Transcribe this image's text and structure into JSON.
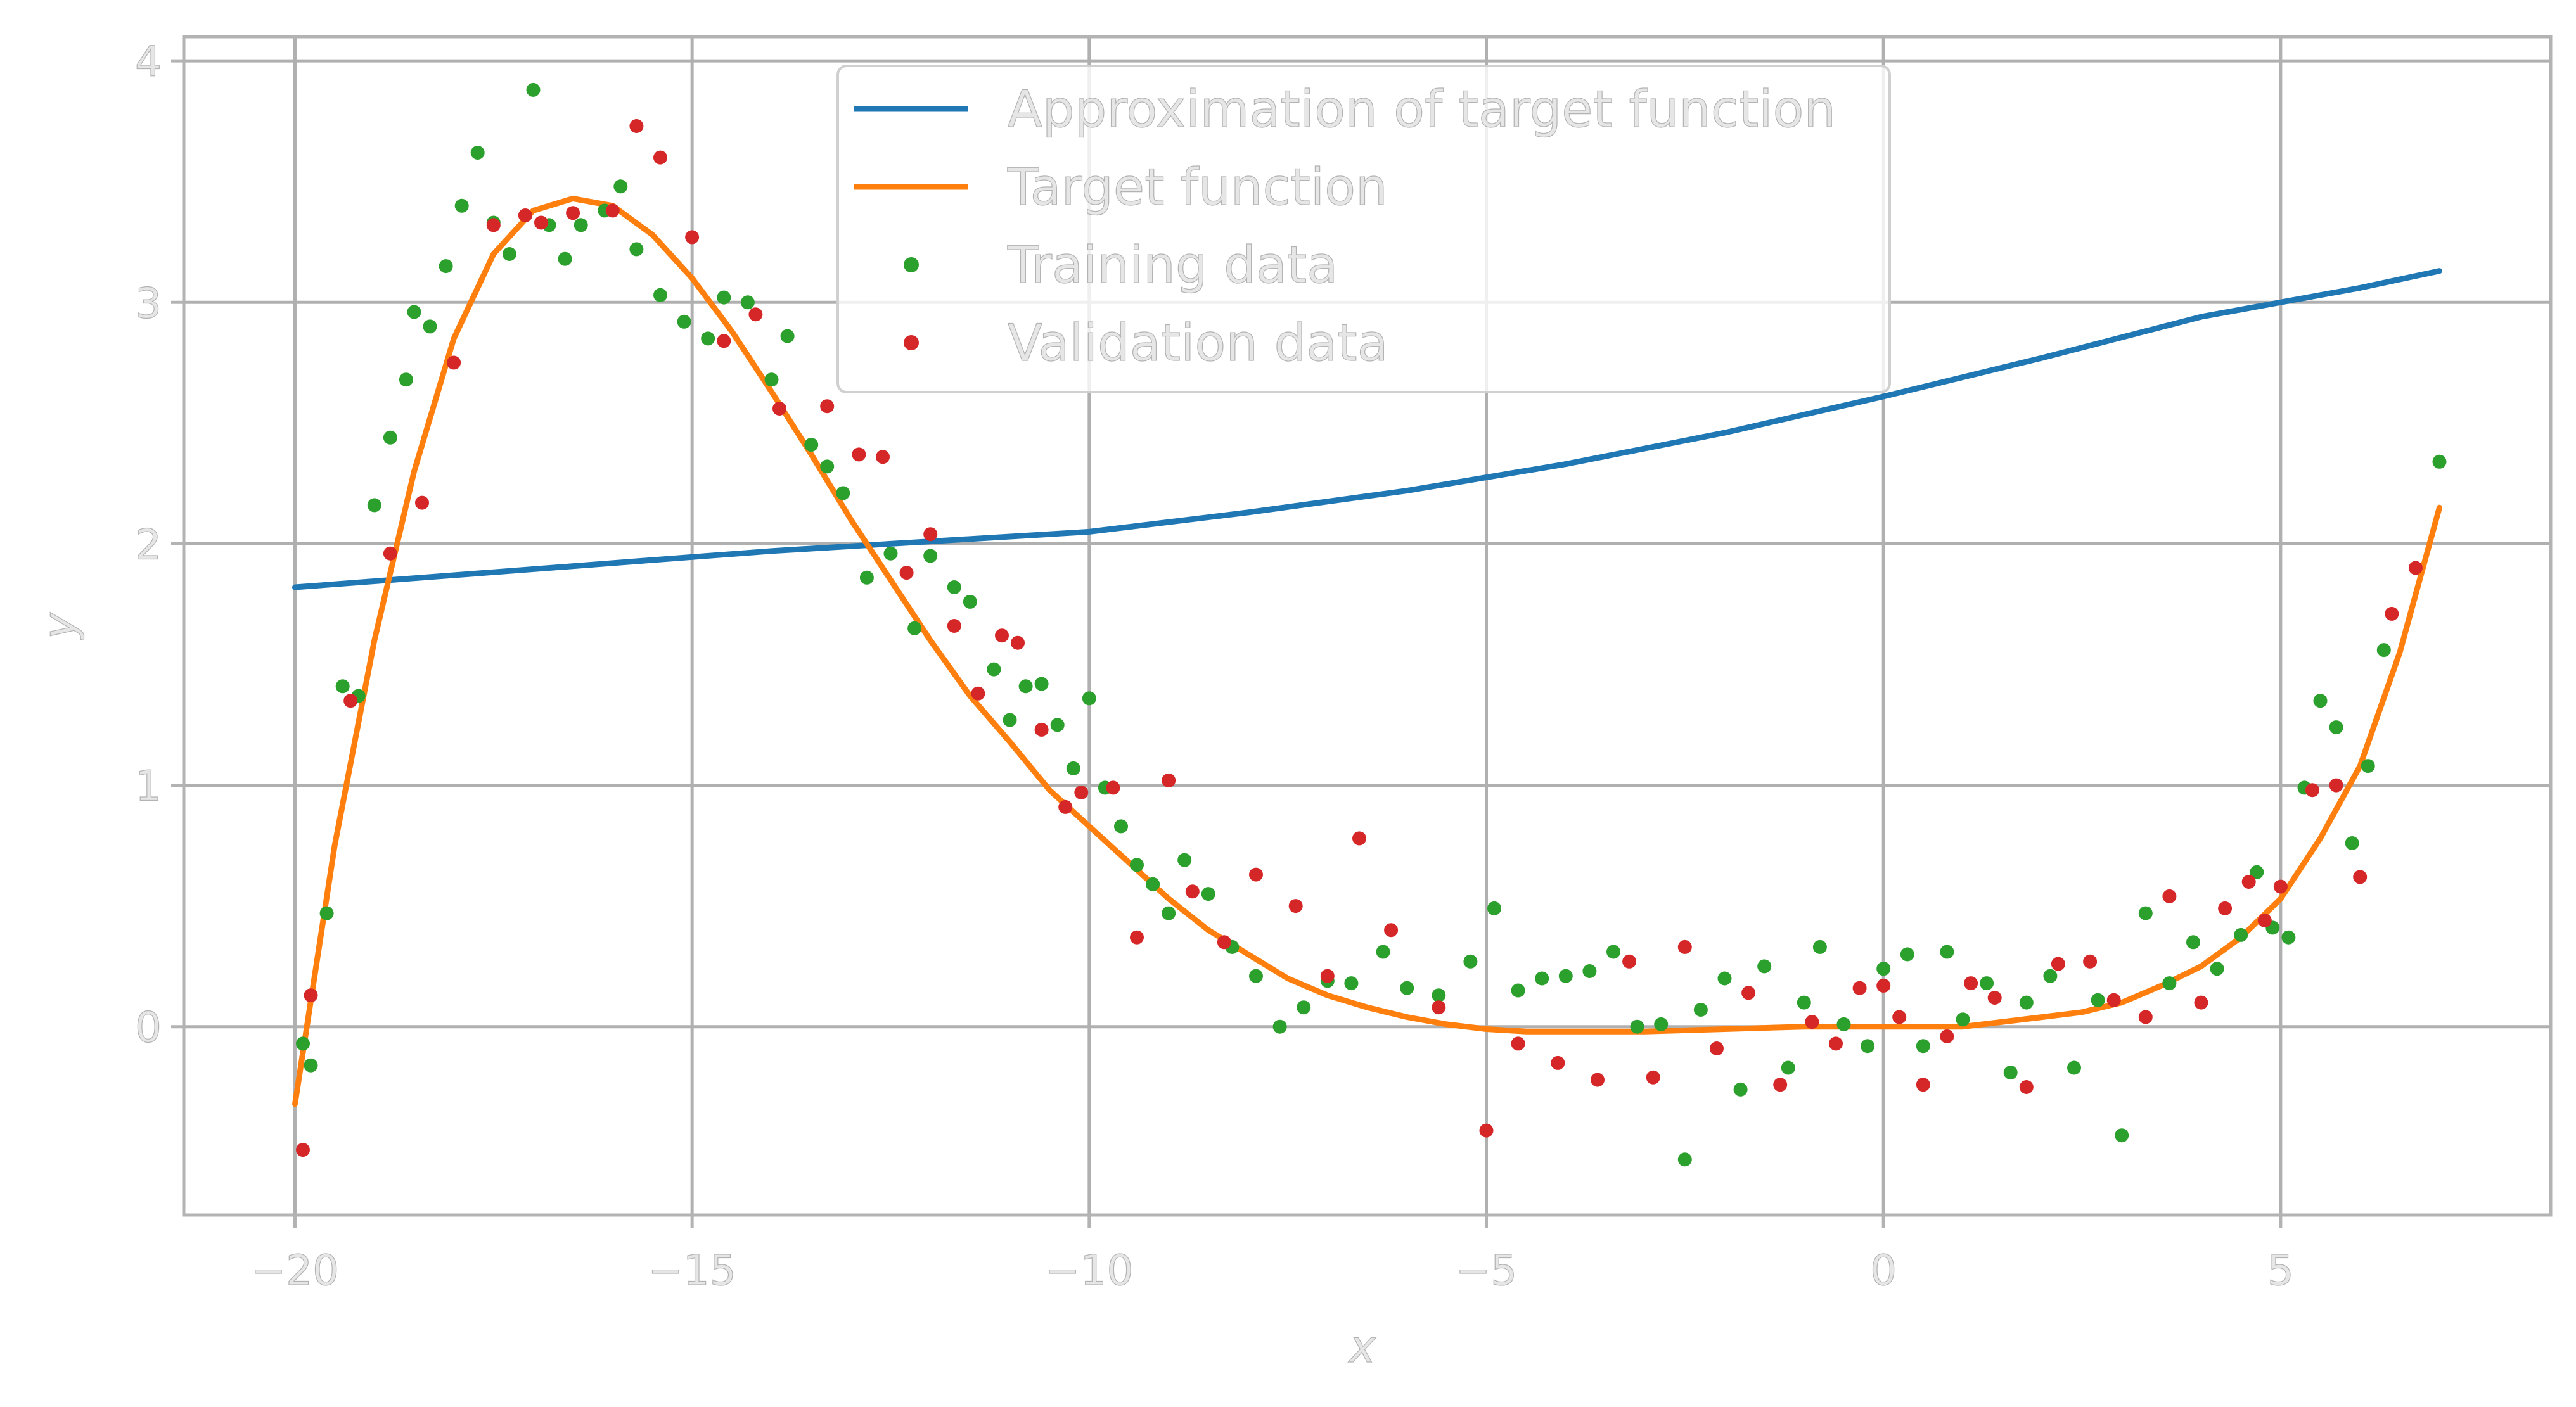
{
  "chart_data": {
    "type": "line",
    "xlabel": "x",
    "ylabel": "y",
    "xlim": [
      -21.4,
      8.4
    ],
    "ylim": [
      -0.78,
      4.1
    ],
    "xticks": [
      -20,
      -15,
      -10,
      -5,
      0,
      5
    ],
    "xtick_labels": [
      "−20",
      "−15",
      "−10",
      "−5",
      "0",
      "5"
    ],
    "yticks": [
      0,
      1,
      2,
      3,
      4
    ],
    "ytick_labels": [
      "0",
      "1",
      "2",
      "3",
      "4"
    ],
    "grid": true,
    "legend_position": "top-center",
    "colors": {
      "approximation": "#1f77b4",
      "target": "#ff7f0e",
      "training": "#2ca02c",
      "validation": "#d62728"
    },
    "series": [
      {
        "name": "Approximation of target function",
        "kind": "line",
        "x": [
          -20,
          -18,
          -16,
          -14,
          -12,
          -10,
          -8,
          -6,
          -4,
          -2,
          0,
          2,
          4,
          6,
          7
        ],
        "y": [
          1.82,
          1.87,
          1.92,
          1.97,
          2.01,
          2.05,
          2.13,
          2.22,
          2.33,
          2.46,
          2.61,
          2.77,
          2.94,
          3.06,
          3.13
        ]
      },
      {
        "name": "Target function",
        "kind": "line",
        "x": [
          -20,
          -19.5,
          -19,
          -18.5,
          -18,
          -17.5,
          -17,
          -16.5,
          -16,
          -15.5,
          -15,
          -14.5,
          -14,
          -13.5,
          -13,
          -12.5,
          -12,
          -11.5,
          -11,
          -10.5,
          -10,
          -9.5,
          -9,
          -8.5,
          -8,
          -7.5,
          -7,
          -6.5,
          -6,
          -5.5,
          -5,
          -4.5,
          -4,
          -3.5,
          -3,
          -2,
          -1,
          0,
          1,
          2,
          2.5,
          3,
          3.5,
          4,
          4.5,
          5,
          5.5,
          6,
          6.5,
          7
        ],
        "y": [
          -0.32,
          0.75,
          1.6,
          2.3,
          2.85,
          3.2,
          3.38,
          3.43,
          3.4,
          3.28,
          3.1,
          2.88,
          2.63,
          2.37,
          2.1,
          1.85,
          1.6,
          1.37,
          1.18,
          0.98,
          0.83,
          0.68,
          0.53,
          0.4,
          0.3,
          0.2,
          0.13,
          0.08,
          0.04,
          0.01,
          -0.01,
          -0.02,
          -0.02,
          -0.02,
          -0.02,
          -0.01,
          0.0,
          0.0,
          0.0,
          0.04,
          0.06,
          0.1,
          0.17,
          0.25,
          0.37,
          0.53,
          0.78,
          1.08,
          1.55,
          2.15
        ]
      },
      {
        "name": "Training data",
        "kind": "scatter",
        "x": [
          -19.9,
          -19.8,
          -19.6,
          -19.4,
          -19.2,
          -19.0,
          -18.8,
          -18.6,
          -18.5,
          -18.3,
          -18.1,
          -17.9,
          -17.7,
          -17.5,
          -17.3,
          -17.0,
          -16.8,
          -16.6,
          -16.4,
          -16.1,
          -15.9,
          -15.7,
          -15.4,
          -15.1,
          -14.8,
          -14.6,
          -14.3,
          -14.0,
          -13.8,
          -13.5,
          -13.3,
          -13.1,
          -12.8,
          -12.5,
          -12.2,
          -12.0,
          -11.7,
          -11.5,
          -11.2,
          -11.0,
          -10.8,
          -10.6,
          -10.4,
          -10.2,
          -10.0,
          -9.8,
          -9.6,
          -9.4,
          -9.2,
          -9.0,
          -8.8,
          -8.5,
          -8.2,
          -7.9,
          -7.6,
          -7.3,
          -7.0,
          -6.7,
          -6.3,
          -6.0,
          -5.6,
          -5.2,
          -4.9,
          -4.6,
          -4.3,
          -4.0,
          -3.7,
          -3.4,
          -3.1,
          -2.8,
          -2.5,
          -2.3,
          -2.0,
          -1.8,
          -1.5,
          -1.2,
          -1.0,
          -0.8,
          -0.5,
          -0.2,
          0.0,
          0.3,
          0.5,
          0.8,
          1.0,
          1.3,
          1.6,
          1.8,
          2.1,
          2.4,
          2.7,
          3.0,
          3.3,
          3.6,
          3.9,
          4.2,
          4.5,
          4.7,
          4.9,
          5.1,
          5.3,
          5.5,
          5.7,
          5.9,
          6.1,
          6.3,
          7.0
        ],
        "y": [
          -0.07,
          -0.16,
          0.47,
          1.41,
          1.37,
          2.16,
          2.44,
          2.68,
          2.96,
          2.9,
          3.15,
          3.4,
          3.62,
          3.33,
          3.2,
          3.88,
          3.32,
          3.18,
          3.32,
          3.38,
          3.48,
          3.22,
          3.03,
          2.92,
          2.85,
          3.02,
          3.0,
          2.68,
          2.86,
          2.41,
          2.32,
          2.21,
          1.86,
          1.96,
          1.65,
          1.95,
          1.82,
          1.76,
          1.48,
          1.27,
          1.41,
          1.42,
          1.25,
          1.07,
          1.36,
          0.99,
          0.83,
          0.67,
          0.59,
          0.47,
          0.69,
          0.55,
          0.33,
          0.21,
          0.0,
          0.08,
          0.19,
          0.18,
          0.31,
          0.16,
          0.13,
          0.27,
          0.49,
          0.15,
          0.2,
          0.21,
          0.23,
          0.31,
          0.0,
          0.01,
          -0.55,
          0.07,
          0.2,
          -0.26,
          0.25,
          -0.17,
          0.1,
          0.33,
          0.01,
          -0.08,
          0.24,
          0.3,
          -0.08,
          0.31,
          0.03,
          0.18,
          -0.19,
          0.1,
          0.21,
          -0.17,
          0.11,
          -0.45,
          0.47,
          0.18,
          0.35,
          0.24,
          0.38,
          0.64,
          0.41,
          0.37,
          0.99,
          1.35,
          1.24,
          0.76,
          1.08,
          1.56,
          2.34
        ]
      },
      {
        "name": "Validation data",
        "kind": "scatter",
        "x": [
          -19.9,
          -19.8,
          -19.3,
          -18.8,
          -18.4,
          -18.0,
          -17.5,
          -17.1,
          -16.9,
          -16.5,
          -16.0,
          -15.7,
          -15.4,
          -15.0,
          -14.6,
          -14.2,
          -13.9,
          -13.3,
          -12.9,
          -12.6,
          -12.3,
          -12.0,
          -11.7,
          -11.4,
          -11.1,
          -10.9,
          -10.6,
          -10.3,
          -10.1,
          -9.7,
          -9.4,
          -9.0,
          -8.7,
          -8.3,
          -7.9,
          -7.4,
          -7.0,
          -6.6,
          -6.2,
          -5.6,
          -5.0,
          -4.6,
          -4.1,
          -3.6,
          -3.2,
          -2.9,
          -2.5,
          -2.1,
          -1.7,
          -1.3,
          -0.9,
          -0.6,
          -0.3,
          0.0,
          0.2,
          0.5,
          0.8,
          1.1,
          1.4,
          1.8,
          2.2,
          2.6,
          2.9,
          3.3,
          3.6,
          4.0,
          4.3,
          4.6,
          4.8,
          5.0,
          5.4,
          5.7,
          6.0,
          6.4,
          6.7
        ],
        "y": [
          -0.51,
          0.13,
          1.35,
          1.96,
          2.17,
          2.75,
          3.32,
          3.36,
          3.33,
          3.37,
          3.38,
          3.73,
          3.6,
          3.27,
          2.84,
          2.95,
          2.56,
          2.57,
          2.37,
          2.36,
          1.88,
          2.04,
          1.66,
          1.38,
          1.62,
          1.59,
          1.23,
          0.91,
          0.97,
          0.99,
          0.37,
          1.02,
          0.56,
          0.35,
          0.63,
          0.5,
          0.21,
          0.78,
          0.4,
          0.08,
          -0.43,
          -0.07,
          -0.15,
          -0.22,
          0.27,
          -0.21,
          0.33,
          -0.09,
          0.14,
          -0.24,
          0.02,
          -0.07,
          0.16,
          0.17,
          0.04,
          -0.24,
          -0.04,
          0.18,
          0.12,
          -0.25,
          0.26,
          0.27,
          0.11,
          0.04,
          0.54,
          0.1,
          0.49,
          0.6,
          0.44,
          0.58,
          0.98,
          1.0,
          0.62,
          1.71,
          1.9
        ]
      }
    ]
  }
}
